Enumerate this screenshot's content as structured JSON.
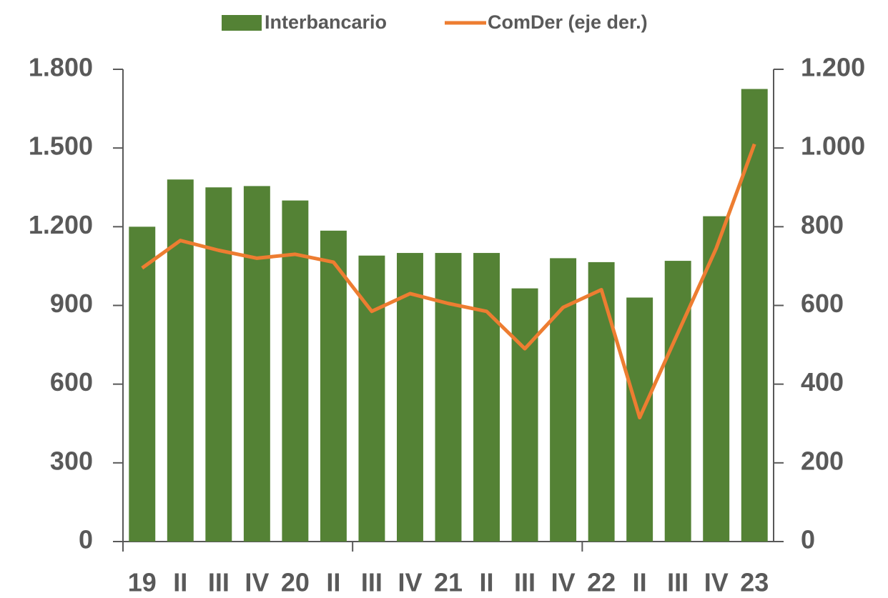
{
  "chart_data": {
    "type": "bar_line",
    "categories": [
      "19",
      "II",
      "III",
      "IV",
      "20",
      "II",
      "III",
      "IV",
      "21",
      "II",
      "III",
      "IV",
      "22",
      "II",
      "III",
      "IV",
      "23"
    ],
    "series": [
      {
        "name": "Interbancario",
        "color": "#548235",
        "type": "bar",
        "values": [
          1200,
          1380,
          1350,
          1355,
          1300,
          1185,
          1090,
          1100,
          1100,
          1100,
          965,
          1080,
          1065,
          930,
          1070,
          1240,
          1725
        ]
      },
      {
        "name": "ComDer (eje der.)",
        "color": "#ED7D31",
        "type": "line",
        "axis": "y2",
        "values": [
          695,
          765,
          740,
          720,
          730,
          710,
          585,
          630,
          605,
          585,
          490,
          595,
          640,
          315,
          530,
          745,
          1010
        ]
      }
    ],
    "ylim": [
      0,
      1800
    ],
    "yticks": [
      0,
      300,
      600,
      900,
      {
        "value": 1200,
        "label": "1.200"
      },
      {
        "value": 1500,
        "label": "1.500"
      },
      {
        "value": 1800,
        "label": "1.800"
      }
    ],
    "y2lim": [
      0,
      1200
    ],
    "y2ticks": [
      0,
      200,
      400,
      600,
      800,
      {
        "value": 1000,
        "label": "1.000"
      },
      {
        "value": 1200,
        "label": "1.200"
      }
    ],
    "legend": "top",
    "grid": false
  }
}
